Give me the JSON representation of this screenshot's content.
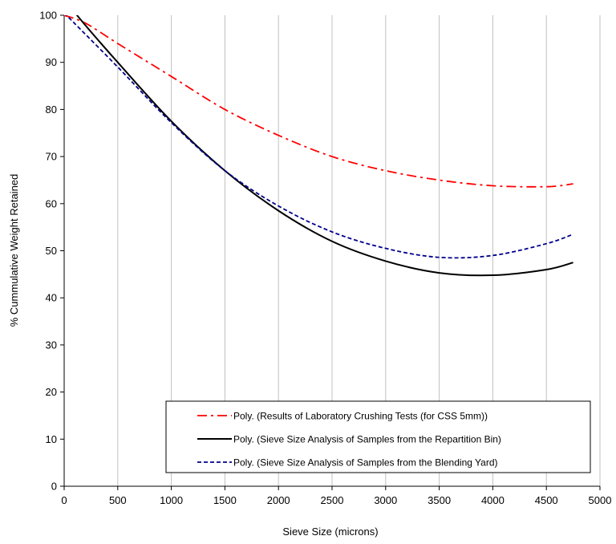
{
  "chart_data": {
    "type": "line",
    "title": "",
    "xlabel": "Sieve Size (microns)",
    "ylabel": "% Cummulative Weight Retained",
    "xlim": [
      0,
      5000
    ],
    "ylim": [
      0,
      100
    ],
    "xticks": [
      0,
      500,
      1000,
      1500,
      2000,
      2500,
      3000,
      3500,
      4000,
      4500,
      5000
    ],
    "yticks": [
      0,
      10,
      20,
      30,
      40,
      50,
      60,
      70,
      80,
      90,
      100
    ],
    "grid": "vertical",
    "legend_position": "bottom-right",
    "series": [
      {
        "name": "Poly. (Results of Laboratory Crushing Tests  (for CSS 5mm))",
        "color": "#ff0000",
        "style": "dash-dot",
        "x": [
          0,
          200,
          500,
          1000,
          1500,
          2000,
          2500,
          3000,
          3500,
          4000,
          4500,
          4750
        ],
        "y": [
          100,
          98.3,
          94,
          87,
          80,
          74.5,
          70,
          67,
          65,
          63.8,
          63.6,
          64.2
        ]
      },
      {
        "name": "Poly. (Sieve Size Analysis of Samples from the Repartition Bin)",
        "color": "#000000",
        "style": "solid",
        "x": [
          0,
          120,
          500,
          1000,
          1500,
          2000,
          2500,
          3000,
          3500,
          4000,
          4500,
          4750
        ],
        "y": [
          104,
          100,
          90,
          77.5,
          67,
          58.5,
          52,
          47.8,
          45.3,
          44.8,
          46,
          47.5
        ]
      },
      {
        "name": "Poly. (Sieve Size Analysis of Samples from the Blending Yard)",
        "color": "#00008b",
        "style": "dashed",
        "x": [
          0,
          500,
          1000,
          1500,
          2000,
          2500,
          3000,
          3500,
          4000,
          4500,
          4750
        ],
        "y": [
          100.5,
          89,
          77.2,
          67,
          59.5,
          54,
          50.5,
          48.6,
          49,
          51.5,
          53.5
        ]
      }
    ]
  }
}
